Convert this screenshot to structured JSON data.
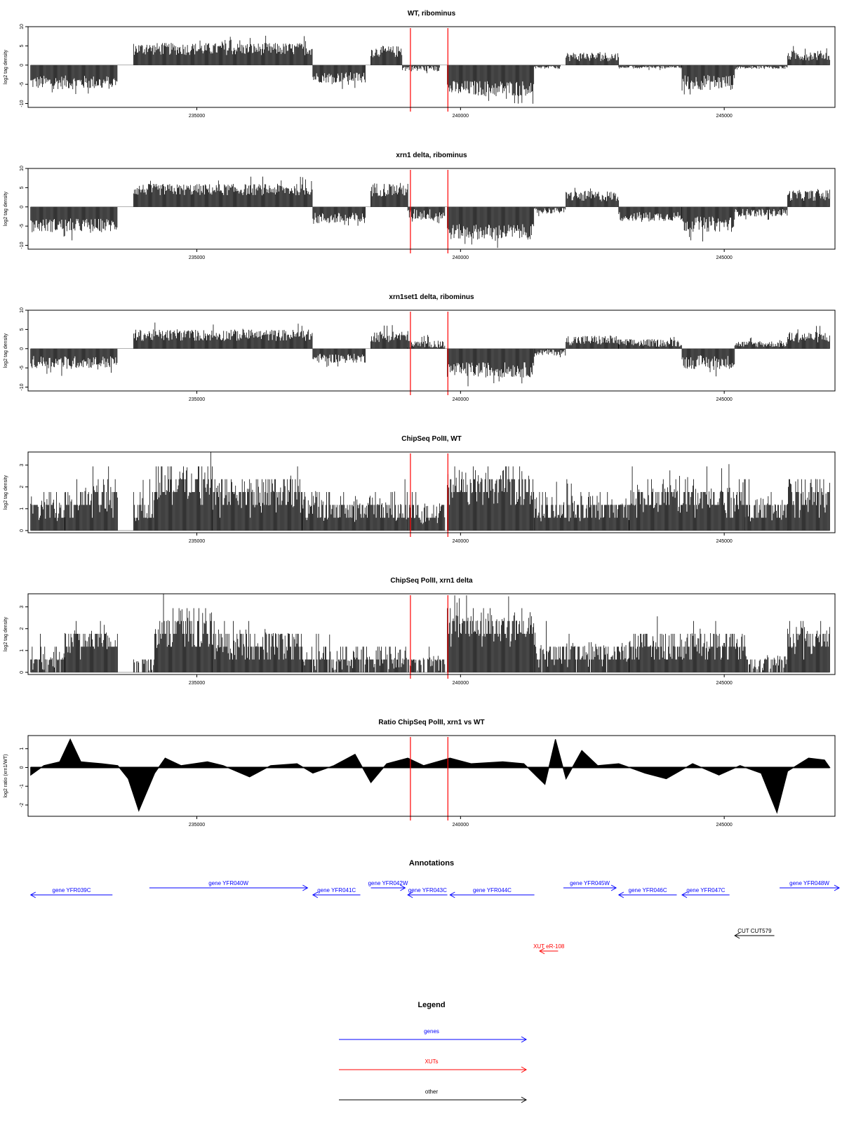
{
  "colors": {
    "red": "#ff0000",
    "blue": "#0000ff",
    "black": "#000000"
  },
  "chart_data": [
    {
      "type": "bar",
      "title": "WT, ribominus",
      "ylabel": "log2 tag density",
      "xlim": [
        231800,
        247100
      ],
      "ylim": [
        -11,
        10
      ],
      "yticks": [
        -10,
        -5,
        0,
        5,
        10
      ],
      "xticks": [
        235000,
        240000,
        245000
      ],
      "vlines": [
        239050,
        239760
      ],
      "segments": [
        {
          "x": [
            231850,
            233500
          ],
          "y": -4.5,
          "amp": 1.8
        },
        {
          "x": [
            233800,
            237200
          ],
          "y": 4.2,
          "amp": 1.6
        },
        {
          "x": [
            237200,
            238200
          ],
          "y": -3.2,
          "amp": 1.4
        },
        {
          "x": [
            238300,
            238900
          ],
          "y": 3.5,
          "amp": 1.5
        },
        {
          "x": [
            238900,
            239600
          ],
          "y": -0.8,
          "amp": 0.8
        },
        {
          "x": [
            239750,
            241400
          ],
          "y": -6.0,
          "amp": 2.0
        },
        {
          "x": [
            241400,
            241900
          ],
          "y": -0.5,
          "amp": 0.5
        },
        {
          "x": [
            242000,
            243000
          ],
          "y": 2.2,
          "amp": 1.2
        },
        {
          "x": [
            243000,
            244200
          ],
          "y": -0.3,
          "amp": 0.6
        },
        {
          "x": [
            244200,
            245200
          ],
          "y": -4.5,
          "amp": 2.0
        },
        {
          "x": [
            245200,
            246200
          ],
          "y": -0.4,
          "amp": 0.6
        },
        {
          "x": [
            246200,
            247000
          ],
          "y": 2.5,
          "amp": 1.3
        }
      ]
    },
    {
      "type": "bar",
      "title": "xrn1 delta, ribominus",
      "ylabel": "log2 tag density",
      "xlim": [
        231800,
        247100
      ],
      "ylim": [
        -11,
        10
      ],
      "yticks": [
        -10,
        -5,
        0,
        5,
        10
      ],
      "xticks": [
        235000,
        240000,
        245000
      ],
      "vlines": [
        239050,
        239760
      ],
      "segments": [
        {
          "x": [
            231850,
            233500
          ],
          "y": -4.8,
          "amp": 1.8
        },
        {
          "x": [
            233800,
            237200
          ],
          "y": 4.5,
          "amp": 1.5
        },
        {
          "x": [
            237200,
            238200
          ],
          "y": -3.0,
          "amp": 1.5
        },
        {
          "x": [
            238300,
            239000
          ],
          "y": 4.5,
          "amp": 1.8
        },
        {
          "x": [
            239000,
            239700
          ],
          "y": -2.0,
          "amp": 1.5
        },
        {
          "x": [
            239750,
            241400
          ],
          "y": -6.5,
          "amp": 2.0
        },
        {
          "x": [
            241400,
            242000
          ],
          "y": -1.0,
          "amp": 0.8
        },
        {
          "x": [
            242000,
            243000
          ],
          "y": 2.8,
          "amp": 1.4
        },
        {
          "x": [
            243000,
            244200
          ],
          "y": -2.5,
          "amp": 1.2
        },
        {
          "x": [
            244200,
            245200
          ],
          "y": -4.5,
          "amp": 2.0
        },
        {
          "x": [
            245200,
            246200
          ],
          "y": -1.5,
          "amp": 1.0
        },
        {
          "x": [
            246200,
            247000
          ],
          "y": 3.0,
          "amp": 1.4
        }
      ]
    },
    {
      "type": "bar",
      "title": "xrn1set1 delta, ribominus",
      "ylabel": "log2 tag density",
      "xlim": [
        231800,
        247100
      ],
      "ylim": [
        -11,
        10
      ],
      "yticks": [
        -10,
        -5,
        0,
        5,
        10
      ],
      "xticks": [
        235000,
        240000,
        245000
      ],
      "vlines": [
        239050,
        239760
      ],
      "segments": [
        {
          "x": [
            231850,
            233500
          ],
          "y": -3.5,
          "amp": 1.6
        },
        {
          "x": [
            233800,
            237200
          ],
          "y": 3.5,
          "amp": 1.5
        },
        {
          "x": [
            237200,
            238200
          ],
          "y": -2.5,
          "amp": 1.2
        },
        {
          "x": [
            238300,
            239000
          ],
          "y": 3.2,
          "amp": 1.5
        },
        {
          "x": [
            239000,
            239700
          ],
          "y": 1.0,
          "amp": 1.2
        },
        {
          "x": [
            239750,
            241400
          ],
          "y": -5.5,
          "amp": 2.0
        },
        {
          "x": [
            241400,
            242000
          ],
          "y": -1.0,
          "amp": 0.8
        },
        {
          "x": [
            242000,
            243000
          ],
          "y": 2.2,
          "amp": 1.3
        },
        {
          "x": [
            243000,
            244200
          ],
          "y": 1.5,
          "amp": 1.0
        },
        {
          "x": [
            244200,
            245200
          ],
          "y": -3.5,
          "amp": 1.8
        },
        {
          "x": [
            245200,
            246200
          ],
          "y": 1.2,
          "amp": 0.8
        },
        {
          "x": [
            246200,
            247000
          ],
          "y": 3.0,
          "amp": 1.4
        }
      ]
    },
    {
      "type": "bar",
      "title": "ChipSeq PolII, WT",
      "ylabel": "log2 tag density",
      "xlim": [
        231800,
        247100
      ],
      "ylim": [
        -0.1,
        3.6
      ],
      "yticks": [
        0.0,
        1.0,
        2.0,
        3.0
      ],
      "xticks": [
        235000,
        240000,
        245000
      ],
      "vlines": [
        239050,
        239760
      ],
      "segments": [
        {
          "x": [
            231850,
            232500
          ],
          "y": 1.0,
          "amp": 0.6
        },
        {
          "x": [
            232500,
            233500
          ],
          "y": 1.5,
          "amp": 0.7
        },
        {
          "x": [
            233800,
            234200
          ],
          "y": 1.0,
          "amp": 0.6
        },
        {
          "x": [
            234200,
            235300
          ],
          "y": 2.2,
          "amp": 0.8
        },
        {
          "x": [
            235300,
            237000
          ],
          "y": 1.6,
          "amp": 0.8
        },
        {
          "x": [
            237000,
            239000
          ],
          "y": 1.0,
          "amp": 0.6
        },
        {
          "x": [
            239000,
            239700
          ],
          "y": 0.8,
          "amp": 0.5
        },
        {
          "x": [
            239750,
            241400
          ],
          "y": 2.0,
          "amp": 0.8
        },
        {
          "x": [
            241400,
            243200
          ],
          "y": 1.0,
          "amp": 0.6
        },
        {
          "x": [
            243200,
            245400
          ],
          "y": 1.5,
          "amp": 0.7
        },
        {
          "x": [
            245400,
            246200
          ],
          "y": 1.0,
          "amp": 0.6
        },
        {
          "x": [
            246200,
            247000
          ],
          "y": 1.6,
          "amp": 0.8
        }
      ]
    },
    {
      "type": "bar",
      "title": "ChipSeq PolII, xrn1 delta",
      "ylabel": "log2 tag density",
      "xlim": [
        231800,
        247100
      ],
      "ylim": [
        -0.1,
        3.6
      ],
      "yticks": [
        0.0,
        1.0,
        2.0,
        3.0
      ],
      "xticks": [
        235000,
        240000,
        245000
      ],
      "vlines": [
        239050,
        239760
      ],
      "segments": [
        {
          "x": [
            231850,
            232500
          ],
          "y": 0.6,
          "amp": 0.5
        },
        {
          "x": [
            232500,
            233500
          ],
          "y": 1.4,
          "amp": 0.6
        },
        {
          "x": [
            233800,
            234200
          ],
          "y": 0.3,
          "amp": 0.3
        },
        {
          "x": [
            234200,
            235300
          ],
          "y": 2.0,
          "amp": 0.9
        },
        {
          "x": [
            235300,
            237000
          ],
          "y": 1.3,
          "amp": 0.7
        },
        {
          "x": [
            237000,
            239000
          ],
          "y": 0.6,
          "amp": 0.5
        },
        {
          "x": [
            239000,
            239700
          ],
          "y": 0.4,
          "amp": 0.4
        },
        {
          "x": [
            239750,
            241400
          ],
          "y": 2.1,
          "amp": 0.7
        },
        {
          "x": [
            241400,
            243200
          ],
          "y": 0.8,
          "amp": 0.6
        },
        {
          "x": [
            243200,
            245400
          ],
          "y": 1.2,
          "amp": 0.6
        },
        {
          "x": [
            245400,
            246200
          ],
          "y": 0.4,
          "amp": 0.4
        },
        {
          "x": [
            246200,
            247000
          ],
          "y": 1.5,
          "amp": 0.7
        }
      ]
    },
    {
      "type": "area",
      "title": "Ratio ChipSeq PolII, xrn1 vs WT",
      "ylabel": "log2 ratio (xrn1/WT)",
      "xlim": [
        231800,
        247100
      ],
      "ylim": [
        -2.6,
        1.7
      ],
      "yticks": [
        -2,
        -1,
        0,
        1
      ],
      "xticks": [
        235000,
        240000,
        245000
      ],
      "vlines": [
        239050,
        239760
      ],
      "points": [
        [
          231850,
          -0.4
        ],
        [
          232100,
          0.1
        ],
        [
          232400,
          0.3
        ],
        [
          232600,
          1.5
        ],
        [
          232800,
          0.3
        ],
        [
          233200,
          0.2
        ],
        [
          233500,
          0.1
        ],
        [
          233700,
          -0.6
        ],
        [
          233900,
          -2.3
        ],
        [
          234200,
          -0.3
        ],
        [
          234400,
          0.5
        ],
        [
          234700,
          0.1
        ],
        [
          235200,
          0.3
        ],
        [
          235500,
          0.1
        ],
        [
          236000,
          -0.5
        ],
        [
          236400,
          0.1
        ],
        [
          236900,
          0.2
        ],
        [
          237200,
          -0.3
        ],
        [
          237600,
          0.1
        ],
        [
          238000,
          0.7
        ],
        [
          238300,
          -0.8
        ],
        [
          238600,
          0.2
        ],
        [
          239000,
          0.5
        ],
        [
          239300,
          0.1
        ],
        [
          239800,
          0.5
        ],
        [
          240200,
          0.2
        ],
        [
          240800,
          0.3
        ],
        [
          241200,
          0.2
        ],
        [
          241600,
          -0.9
        ],
        [
          241800,
          1.5
        ],
        [
          242000,
          -0.6
        ],
        [
          242300,
          0.9
        ],
        [
          242600,
          0.1
        ],
        [
          243000,
          0.2
        ],
        [
          243500,
          -0.3
        ],
        [
          243900,
          -0.6
        ],
        [
          244400,
          0.2
        ],
        [
          244900,
          -0.4
        ],
        [
          245300,
          0.1
        ],
        [
          245700,
          -0.3
        ],
        [
          246000,
          -2.4
        ],
        [
          246200,
          -0.2
        ],
        [
          246600,
          0.5
        ],
        [
          246900,
          0.4
        ],
        [
          247000,
          0.0
        ]
      ]
    }
  ],
  "annotations": {
    "title": "Annotations",
    "items": [
      {
        "label": "gene YFR039C",
        "start": 231850,
        "end": 233400,
        "strand": "-",
        "row": 1,
        "color": "#0000ff"
      },
      {
        "label": "gene YFR040W",
        "start": 234100,
        "end": 237100,
        "strand": "+",
        "row": 0,
        "color": "#0000ff"
      },
      {
        "label": "gene YFR041C",
        "start": 237200,
        "end": 238100,
        "strand": "-",
        "row": 1,
        "color": "#0000ff"
      },
      {
        "label": "gene YFR042W",
        "start": 238300,
        "end": 238950,
        "strand": "+",
        "row": 0,
        "color": "#0000ff"
      },
      {
        "label": "gene YFR043C",
        "start": 239000,
        "end": 239750,
        "strand": "-",
        "row": 1,
        "color": "#0000ff"
      },
      {
        "label": "gene YFR044C",
        "start": 239800,
        "end": 241400,
        "strand": "-",
        "row": 1,
        "color": "#0000ff"
      },
      {
        "label": "gene YFR045W",
        "start": 241950,
        "end": 242950,
        "strand": "+",
        "row": 0,
        "color": "#0000ff"
      },
      {
        "label": "gene YFR046C",
        "start": 243000,
        "end": 244100,
        "strand": "-",
        "row": 1,
        "color": "#0000ff"
      },
      {
        "label": "gene YFR047C",
        "start": 244200,
        "end": 245100,
        "strand": "-",
        "row": 1,
        "color": "#0000ff"
      },
      {
        "label": "gene YFR048W",
        "start": 246050,
        "end": 247700,
        "strand": "+",
        "row": 0,
        "color": "#0000ff"
      },
      {
        "label": "CUT CUT579",
        "start": 245200,
        "end": 245950,
        "strand": "-",
        "row": 3,
        "color": "#000000"
      },
      {
        "label": "XUT eR-108",
        "start": 241500,
        "end": 241850,
        "strand": "-",
        "row": 4,
        "color": "#ff0000"
      }
    ]
  },
  "legend": {
    "title": "Legend",
    "items": [
      {
        "label": "genes",
        "color": "#0000ff"
      },
      {
        "label": "XUTs",
        "color": "#ff0000"
      },
      {
        "label": "other",
        "color": "#000000"
      }
    ]
  }
}
